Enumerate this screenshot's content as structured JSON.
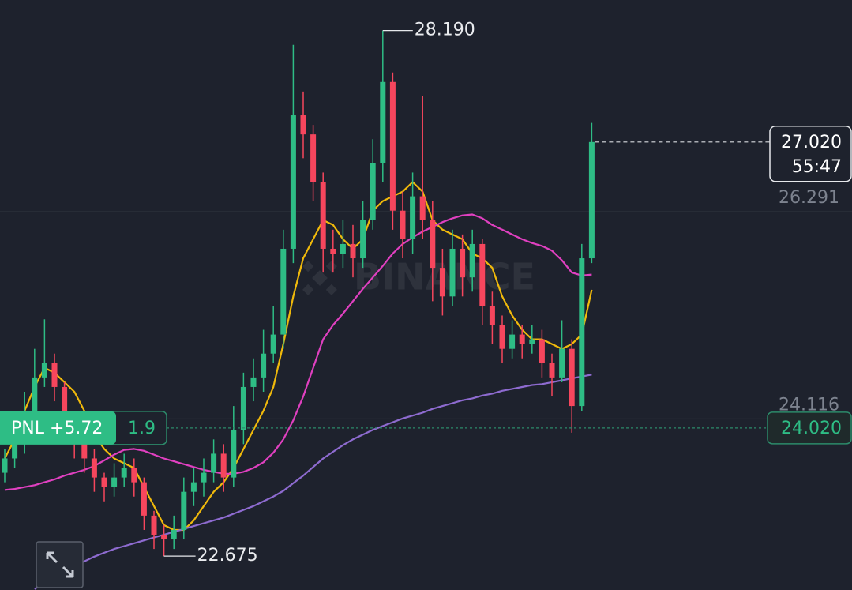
{
  "chart_data": {
    "type": "candlestick",
    "watermark": "BINANCE",
    "ylim": [
      22.32,
      28.51
    ],
    "yticks": [
      24.116,
      26.291
    ],
    "grid": true,
    "up_color": "#2ebd85",
    "down_color": "#f6465d",
    "open": [
      23.55,
      23.7,
      23.85,
      24.2,
      24.55,
      24.7,
      24.45,
      24.1,
      23.85,
      23.7,
      23.5,
      23.4,
      23.5,
      23.6,
      23.45,
      23.1,
      22.9,
      22.85,
      22.95,
      23.35,
      23.45,
      23.55,
      23.75,
      23.5,
      24.0,
      24.45,
      24.55,
      24.8,
      25.0,
      25.9,
      27.3,
      27.1,
      26.6,
      25.9,
      25.85,
      25.95,
      25.8,
      26.2,
      26.8,
      27.65,
      26.3,
      26.0,
      26.45,
      26.2,
      25.7,
      25.4,
      25.9,
      25.6,
      25.95,
      25.3,
      25.1,
      24.85,
      25.0,
      24.9,
      24.95,
      24.7,
      24.55,
      24.85,
      24.25,
      25.8
    ],
    "high": [
      23.8,
      24.0,
      24.4,
      24.85,
      25.16,
      24.8,
      24.5,
      24.15,
      23.9,
      23.8,
      23.55,
      23.65,
      23.75,
      23.7,
      23.5,
      23.15,
      23.0,
      23.1,
      23.5,
      23.6,
      23.7,
      23.9,
      23.85,
      24.25,
      24.6,
      24.75,
      25.05,
      25.3,
      26.1,
      28.04,
      27.55,
      27.2,
      26.7,
      26.1,
      26.2,
      26.15,
      26.4,
      27.05,
      28.19,
      27.75,
      26.5,
      26.7,
      27.5,
      26.4,
      25.9,
      26.1,
      26.05,
      26.1,
      26.0,
      25.45,
      25.2,
      25.15,
      25.1,
      25.1,
      25.05,
      24.8,
      25.15,
      24.95,
      25.95,
      27.22
    ],
    "low": [
      23.45,
      23.6,
      23.75,
      24.1,
      24.45,
      24.3,
      23.95,
      23.7,
      23.55,
      23.35,
      23.25,
      23.3,
      23.4,
      23.3,
      22.95,
      22.75,
      22.675,
      22.75,
      22.85,
      23.2,
      23.3,
      23.45,
      23.35,
      23.4,
      23.85,
      24.3,
      24.4,
      24.7,
      24.85,
      25.75,
      26.85,
      26.4,
      25.65,
      25.65,
      25.7,
      25.6,
      25.7,
      26.1,
      26.6,
      26.1,
      25.8,
      25.85,
      26.0,
      25.35,
      25.2,
      25.3,
      25.4,
      25.45,
      25.1,
      24.9,
      24.7,
      24.75,
      24.75,
      24.8,
      24.55,
      24.35,
      24.5,
      23.97,
      24.2,
      25.75
    ],
    "close": [
      23.7,
      23.85,
      24.2,
      24.55,
      24.7,
      24.45,
      24.1,
      23.85,
      23.7,
      23.5,
      23.4,
      23.5,
      23.6,
      23.45,
      23.1,
      22.9,
      22.85,
      22.95,
      23.35,
      23.45,
      23.55,
      23.75,
      23.5,
      24.0,
      24.45,
      24.55,
      24.8,
      25.0,
      25.9,
      27.3,
      27.1,
      26.6,
      25.9,
      25.85,
      25.95,
      25.8,
      26.2,
      26.8,
      27.65,
      26.3,
      26.0,
      26.45,
      26.2,
      25.7,
      25.4,
      25.9,
      25.6,
      25.95,
      25.3,
      25.1,
      24.85,
      25.0,
      24.9,
      24.95,
      24.7,
      24.55,
      24.85,
      24.25,
      25.8,
      27.02
    ],
    "moving_averages": [
      {
        "color": "#f0b90b",
        "values": [
          23.7,
          23.9,
          24.2,
          24.45,
          24.65,
          24.6,
          24.5,
          24.4,
          24.2,
          23.95,
          23.8,
          23.7,
          23.65,
          23.6,
          23.4,
          23.2,
          23.0,
          22.95,
          22.95,
          23.05,
          23.2,
          23.35,
          23.45,
          23.6,
          23.8,
          24.0,
          24.2,
          24.45,
          24.9,
          25.4,
          25.8,
          26.0,
          26.2,
          26.15,
          26.0,
          25.9,
          26.0,
          26.3,
          26.4,
          26.45,
          26.5,
          26.6,
          26.5,
          26.2,
          26.1,
          26.05,
          26.0,
          25.85,
          25.8,
          25.7,
          25.4,
          25.2,
          25.05,
          24.95,
          24.95,
          24.9,
          24.85,
          24.9,
          25.0,
          25.47
        ]
      },
      {
        "color": "#e040c0",
        "values": [
          23.37,
          23.38,
          23.4,
          23.42,
          23.45,
          23.48,
          23.52,
          23.55,
          23.58,
          23.62,
          23.68,
          23.74,
          23.79,
          23.8,
          23.78,
          23.74,
          23.7,
          23.67,
          23.64,
          23.61,
          23.58,
          23.56,
          23.54,
          23.54,
          23.56,
          23.6,
          23.66,
          23.76,
          23.9,
          24.1,
          24.35,
          24.65,
          24.95,
          25.1,
          25.22,
          25.35,
          25.48,
          25.6,
          25.72,
          25.85,
          25.95,
          26.02,
          26.08,
          26.13,
          26.18,
          26.22,
          26.25,
          26.26,
          26.22,
          26.15,
          26.1,
          26.05,
          26.0,
          25.96,
          25.93,
          25.88,
          25.78,
          25.65,
          25.62,
          25.63
        ]
      },
      {
        "color": "#8e6bd0",
        "values": [
          null,
          null,
          null,
          22.33,
          22.4,
          22.46,
          22.52,
          22.57,
          22.62,
          22.67,
          22.71,
          22.75,
          22.78,
          22.81,
          22.84,
          22.87,
          22.9,
          22.93,
          22.96,
          22.99,
          23.02,
          23.05,
          23.08,
          23.12,
          23.16,
          23.2,
          23.25,
          23.3,
          23.36,
          23.44,
          23.52,
          23.61,
          23.7,
          23.77,
          23.84,
          23.9,
          23.95,
          24.0,
          24.04,
          24.08,
          24.12,
          24.15,
          24.18,
          24.22,
          24.25,
          24.28,
          24.31,
          24.33,
          24.36,
          24.38,
          24.41,
          24.43,
          24.45,
          24.47,
          24.48,
          24.5,
          24.52,
          24.54,
          24.56,
          24.58
        ]
      }
    ],
    "high_label": {
      "value": 28.19,
      "label": "28.190"
    },
    "low_label": 22.675,
    "last_price": {
      "value": 27.02,
      "label": "27.020"
    },
    "countdown": "55:47",
    "position": {
      "entry_price": {
        "value": 24.02,
        "label": "24.020"
      },
      "pnl": "PNL +5.72",
      "leverage": 1.9
    }
  }
}
